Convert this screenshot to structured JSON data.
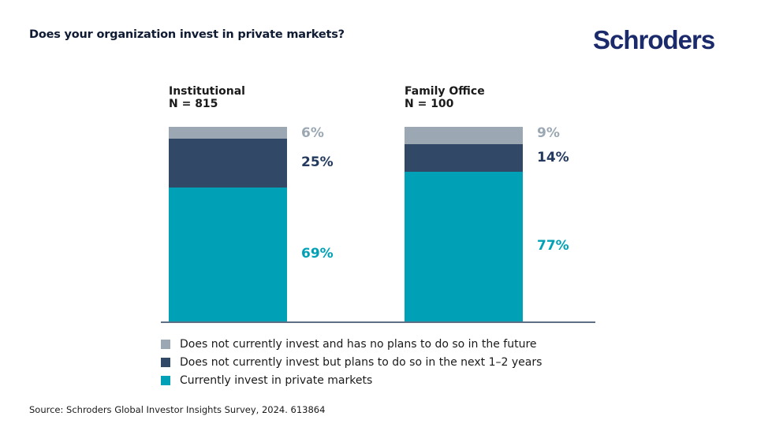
{
  "header": {
    "title": "Does your organization invest in private markets?",
    "logo": "Schroders"
  },
  "chart_data": {
    "type": "bar",
    "stacked": true,
    "title": "Does your organization invest in private markets?",
    "xlabel": "",
    "ylabel": "",
    "ylim": [
      0,
      100
    ],
    "grid": false,
    "legend_position": "bottom",
    "categories": [
      "Institutional",
      "Family Office"
    ],
    "category_subtitles": [
      "N = 815",
      "N = 100"
    ],
    "series": [
      {
        "name": "Currently invest in private markets",
        "values": [
          69,
          77
        ],
        "labels": [
          "69%",
          "77%"
        ],
        "color": "#00a1b6"
      },
      {
        "name": "Does not currently invest but plans to do so in the next 1–2 years",
        "values": [
          25,
          14
        ],
        "labels": [
          "25%",
          "14%"
        ],
        "color": "#314966"
      },
      {
        "name": "Does not currently invest and has no plans to do so in the future",
        "values": [
          6,
          9
        ],
        "labels": [
          "6%",
          "9%"
        ],
        "color": "#9ba8b3"
      }
    ],
    "legend": [
      {
        "label": "Does not currently invest and has no plans to do so in the future",
        "color": "#9ba8b3"
      },
      {
        "label": "Does not currently invest but plans to do so in the next 1–2 years",
        "color": "#314966"
      },
      {
        "label": "Currently invest in private markets",
        "color": "#00a1b6"
      }
    ],
    "label_colors": [
      "#00a1b6",
      "#233a5e",
      "#9ba8b3"
    ]
  },
  "footer": {
    "source": "Source: Schroders Global Investor Insights Survey, 2024. 613864"
  }
}
